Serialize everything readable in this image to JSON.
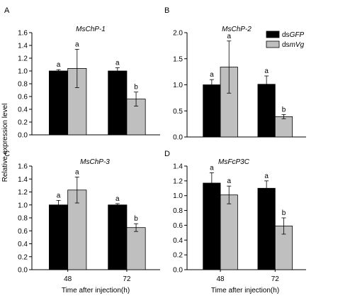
{
  "shared": {
    "ylabel": "Relative expression level",
    "xlabel": "Time after injection(h)",
    "categories": [
      "48",
      "72"
    ],
    "colors": {
      "dsGFP": "#000000",
      "dsmVg": "#bfbfbf"
    },
    "legend": [
      {
        "prefix": "ds",
        "italic": "GFP",
        "color": "#000000"
      },
      {
        "prefix": "ds",
        "italic": "mVg",
        "color": "#bfbfbf"
      }
    ],
    "legend_position": "top-right of panel B"
  },
  "chart_data": [
    {
      "panel": "A",
      "type": "bar",
      "title": "MsChP-1",
      "ylim": [
        0,
        1.6
      ],
      "yticks": [
        "0.0",
        "0.2",
        "0.4",
        "0.6",
        "0.8",
        "1.0",
        "1.2",
        "1.4",
        "1.6"
      ],
      "categories": [
        "48",
        "72"
      ],
      "series": [
        {
          "values": [
            1.0,
            1.0
          ],
          "errors": [
            0.02,
            0.05
          ],
          "letters": [
            "a",
            "a"
          ]
        },
        {
          "values": [
            1.04,
            0.56
          ],
          "errors": [
            0.3,
            0.11
          ],
          "letters": [
            "a",
            "b"
          ]
        }
      ]
    },
    {
      "panel": "B",
      "type": "bar",
      "title": "MsChP-2",
      "ylim": [
        0,
        2.0
      ],
      "yticks": [
        "0.0",
        "0.5",
        "1.0",
        "1.5",
        "2.0"
      ],
      "categories": [
        "48",
        "72"
      ],
      "series": [
        {
          "values": [
            1.0,
            1.01
          ],
          "errors": [
            0.1,
            0.16
          ],
          "letters": [
            "a",
            "a"
          ]
        },
        {
          "values": [
            1.34,
            0.39
          ],
          "errors": [
            0.5,
            0.04
          ],
          "letters": [
            "a",
            "b"
          ]
        }
      ]
    },
    {
      "panel": "C",
      "type": "bar",
      "title": "MsChP-3",
      "ylim": [
        0,
        1.6
      ],
      "yticks": [
        "0.0",
        "0.2",
        "0.4",
        "0.6",
        "0.8",
        "1.0",
        "1.2",
        "1.4",
        "1.6"
      ],
      "categories": [
        "48",
        "72"
      ],
      "series": [
        {
          "values": [
            1.0,
            1.0
          ],
          "errors": [
            0.07,
            0.02
          ],
          "letters": [
            "a",
            "a"
          ]
        },
        {
          "values": [
            1.23,
            0.65
          ],
          "errors": [
            0.2,
            0.06
          ],
          "letters": [
            "a",
            "b"
          ]
        }
      ]
    },
    {
      "panel": "D",
      "type": "bar",
      "title": "MsFcP3C",
      "ylim": [
        0,
        1.4
      ],
      "yticks": [
        "0.0",
        "0.2",
        "0.4",
        "0.6",
        "0.8",
        "1.0",
        "1.2",
        "1.4"
      ],
      "categories": [
        "48",
        "72"
      ],
      "series": [
        {
          "values": [
            1.17,
            1.1
          ],
          "errors": [
            0.14,
            0.1
          ],
          "letters": [
            "a",
            "a"
          ]
        },
        {
          "values": [
            1.01,
            0.59
          ],
          "errors": [
            0.12,
            0.11
          ],
          "letters": [
            "a",
            "b"
          ]
        }
      ]
    }
  ]
}
